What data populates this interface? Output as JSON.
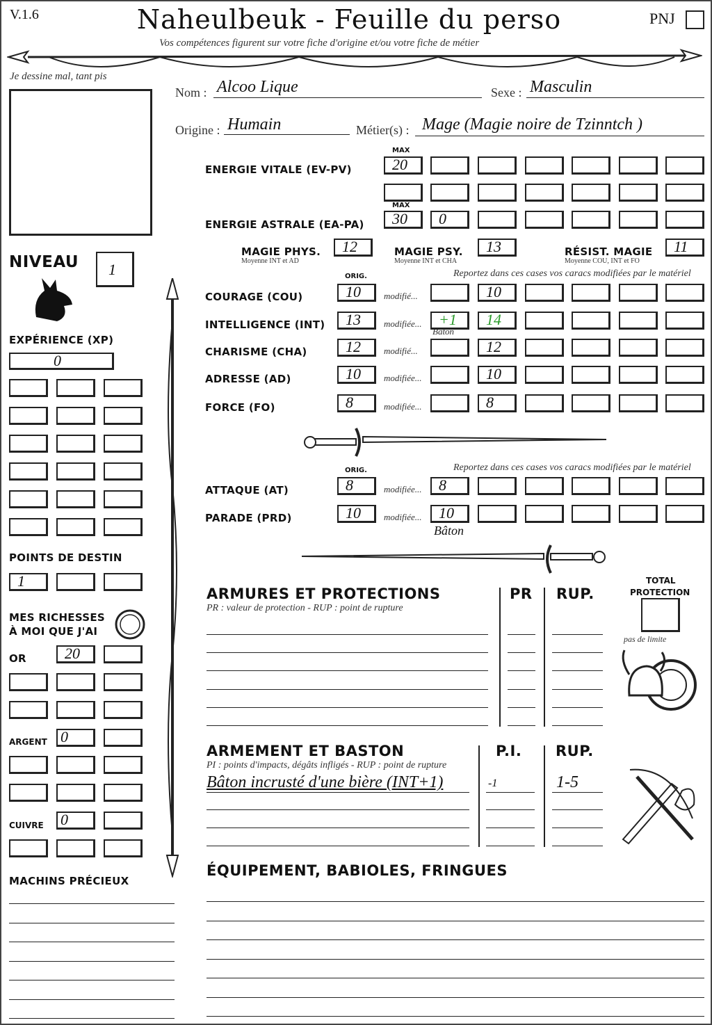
{
  "header": {
    "version": "V.1.6",
    "title": "Naheulbeuk - Feuille du perso",
    "subtitle": "Vos compétences figurent sur votre fiche d'origine et/ou votre fiche de métier",
    "pnj_label": "PNJ",
    "pnj_checked": false
  },
  "portrait": {
    "caption": "Je dessine mal, tant pis"
  },
  "identity": {
    "nom_label": "Nom :",
    "nom": "Alcoo Lique",
    "sexe_label": "Sexe :",
    "sexe": "Masculin",
    "origine_label": "Origine :",
    "origine": "Humain",
    "metier_label": "Métier(s) :",
    "metier": "Mage (Magie noire de Tzinntch )"
  },
  "energies": {
    "max_label": "MAX",
    "ev_label": "ENERGIE VITALE (EV-PV)",
    "ev_max": "20",
    "ea_label": "ENERGIE ASTRALE (EA-PA)",
    "ea_max": "30",
    "ea_current": "0"
  },
  "magic": {
    "phys_label": "MAGIE PHYS.",
    "phys_note": "Moyenne INT et AD",
    "phys": "12",
    "psy_label": "MAGIE PSY.",
    "psy_note": "Moyenne INT et CHA",
    "psy": "13",
    "resist_label": "RÉSIST. MAGIE",
    "resist_note": "Moyenne COU, INT et FO",
    "resist": "11"
  },
  "stats": {
    "orig_label": "ORIG.",
    "report_note": "Reportez dans ces cases vos caracs modifiées par le matériel",
    "rows": [
      {
        "label": "COURAGE (COU)",
        "orig": "10",
        "mod_label": "modifié...",
        "mod": "",
        "value": "10"
      },
      {
        "label": "INTELLIGENCE (INT)",
        "orig": "13",
        "mod_label": "modifiée...",
        "mod": "+1",
        "value": "14",
        "mod_note": "Bâton"
      },
      {
        "label": "CHARISME (CHA)",
        "orig": "12",
        "mod_label": "modifié...",
        "mod": "",
        "value": "12"
      },
      {
        "label": "ADRESSE (AD)",
        "orig": "10",
        "mod_label": "modifiée...",
        "mod": "",
        "value": "10"
      },
      {
        "label": "FORCE (FO)",
        "orig": "8",
        "mod_label": "modifiée...",
        "mod": "",
        "value": "8"
      }
    ]
  },
  "combat": {
    "orig_label": "ORIG.",
    "report_note": "Reportez dans ces cases vos caracs modifiées par le matériel",
    "rows": [
      {
        "label": "ATTAQUE (AT)",
        "orig": "8",
        "mod_label": "modifiée...",
        "value": "8"
      },
      {
        "label": "PARADE (PRD)",
        "orig": "10",
        "mod_label": "modifiée...",
        "value": "10",
        "note": "Bâton"
      }
    ]
  },
  "niveau": {
    "label": "NIVEAU",
    "value": "1"
  },
  "experience": {
    "label": "EXPÉRIENCE (XP)",
    "value": "0"
  },
  "destin": {
    "label": "POINTS DE DESTIN",
    "value": "1"
  },
  "richesses": {
    "label_1": "MES RICHESSES",
    "label_2": "À MOI QUE J'AI",
    "or_label": "OR",
    "or": "20",
    "argent_label": "ARGENT",
    "argent": "0",
    "cuivre_label": "CUIVRE",
    "cuivre": "0"
  },
  "machins": {
    "label": "MACHINS PRÉCIEUX"
  },
  "armures": {
    "title": "ARMURES ET PROTECTIONS",
    "note": "PR : valeur de protection - RUP : point de rupture",
    "pr_label": "PR",
    "rup_label": "RUP.",
    "total_label_1": "TOTAL",
    "total_label_2": "PROTECTION",
    "total_note": "pas de limite"
  },
  "armement": {
    "title": "ARMEMENT ET BASTON",
    "note": "PI : points d'impacts, dégâts infligés - RUP : point de rupture",
    "pi_label": "P.I.",
    "rup_label": "RUP.",
    "weapons": [
      {
        "name": "Bâton incrusté d'une bière (INT+1)",
        "pi": "-1",
        "rup": "1-5"
      }
    ]
  },
  "equipement": {
    "title": "ÉQUIPEMENT, BABIOLES, FRINGUES"
  }
}
